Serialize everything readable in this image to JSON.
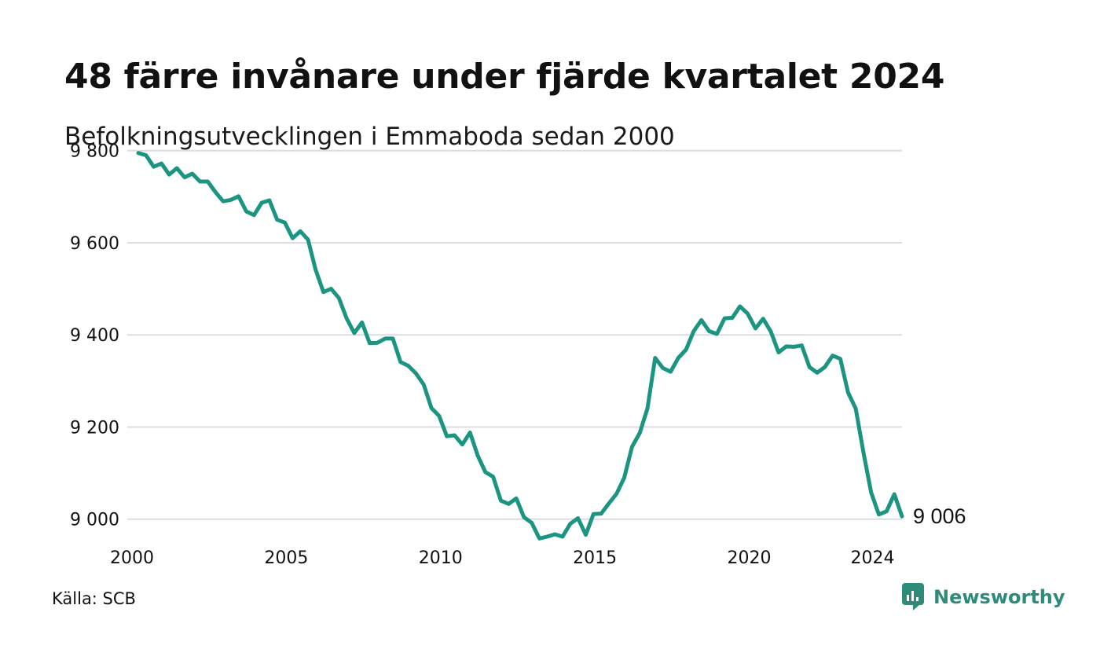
{
  "title": "48 färre invånare under fjärde kvartalet 2024",
  "subtitle": "Befolkningsutvecklingen i Emmaboda sedan 2000",
  "source": "Källa: SCB",
  "brand": {
    "name": "Newsworthy",
    "icon": "newsworthy-logo-icon"
  },
  "colors": {
    "line": "#1b9582",
    "grid": "#dcdce4",
    "brand": "#2e8b7a"
  },
  "chart_data": {
    "type": "line",
    "xlim": [
      2000,
      2024.75
    ],
    "ylim": [
      8950,
      9820
    ],
    "yticks": [
      9000,
      9200,
      9400,
      9600,
      9800
    ],
    "ytick_labels": [
      "9 000",
      "9 200",
      "9 400",
      "9 600",
      "9 800"
    ],
    "xticks": [
      2000,
      2005,
      2010,
      2015,
      2020,
      2024
    ],
    "xtick_labels": [
      "2000",
      "2005",
      "2010",
      "2015",
      "2020",
      "2024"
    ],
    "end_label": "9 006",
    "grid": true,
    "series": [
      {
        "period_start": "2000 Q1",
        "period_step": "quarter",
        "values": [
          9795,
          9790,
          9765,
          9772,
          9748,
          9762,
          9742,
          9750,
          9733,
          9733,
          9710,
          9690,
          9693,
          9701,
          9668,
          9660,
          9687,
          9692,
          9650,
          9644,
          9610,
          9625,
          9607,
          9541,
          9493,
          9500,
          9480,
          9436,
          9404,
          9427,
          9382,
          9383,
          9392,
          9392,
          9341,
          9333,
          9316,
          9292,
          9241,
          9224,
          9180,
          9182,
          9162,
          9188,
          9138,
          9102,
          9092,
          9040,
          9033,
          9045,
          9004,
          8992,
          8958,
          8962,
          8967,
          8962,
          8990,
          9002,
          8966,
          9011,
          9012,
          9034,
          9055,
          9090,
          9157,
          9187,
          9240,
          9350,
          9328,
          9320,
          9350,
          9368,
          9408,
          9432,
          9408,
          9402,
          9436,
          9437,
          9462,
          9446,
          9414,
          9435,
          9407,
          9362,
          9375,
          9374,
          9377,
          9330,
          9318,
          9330,
          9355,
          9348,
          9275,
          9240,
          9145,
          9058,
          9010,
          9017,
          9054,
          9006
        ]
      }
    ]
  }
}
